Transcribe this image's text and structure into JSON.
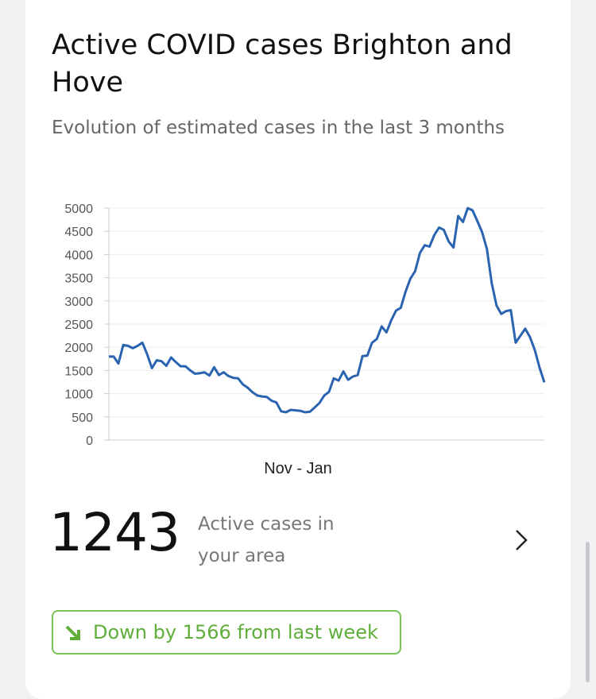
{
  "card": {
    "title": "Active COVID cases Brighton and Hove",
    "subtitle": "Evolution of estimated cases in the last 3 months"
  },
  "chart_data": {
    "type": "line",
    "xlabel": "Nov - Jan",
    "color": "#2a64b0",
    "values": [
      1800,
      1800,
      1650,
      2050,
      2030,
      1980,
      2030,
      2100,
      1850,
      1550,
      1720,
      1700,
      1600,
      1780,
      1680,
      1590,
      1590,
      1500,
      1430,
      1440,
      1460,
      1390,
      1570,
      1400,
      1460,
      1380,
      1340,
      1330,
      1200,
      1130,
      1030,
      960,
      940,
      930,
      850,
      810,
      620,
      600,
      650,
      640,
      630,
      600,
      610,
      700,
      800,
      960,
      1040,
      1330,
      1280,
      1480,
      1300,
      1370,
      1400,
      1810,
      1820,
      2100,
      2180,
      2450,
      2320,
      2580,
      2790,
      2850,
      3200,
      3480,
      3640,
      4030,
      4200,
      4170,
      4420,
      4580,
      4530,
      4280,
      4150,
      4830,
      4700,
      5000,
      4950,
      4720,
      4480,
      4120,
      3380,
      2900,
      2720,
      2780,
      2800,
      2100,
      2250,
      2400,
      2220,
      1940,
      1560,
      1243
    ],
    "ylim": [
      0,
      5000
    ],
    "yticks": [
      0,
      500,
      1000,
      1500,
      2000,
      2500,
      3000,
      3500,
      4000,
      4500,
      5000
    ],
    "grid": true
  },
  "summary": {
    "count": 1243,
    "label": "Active cases in your area",
    "change": "Down by 1566 from last week"
  }
}
